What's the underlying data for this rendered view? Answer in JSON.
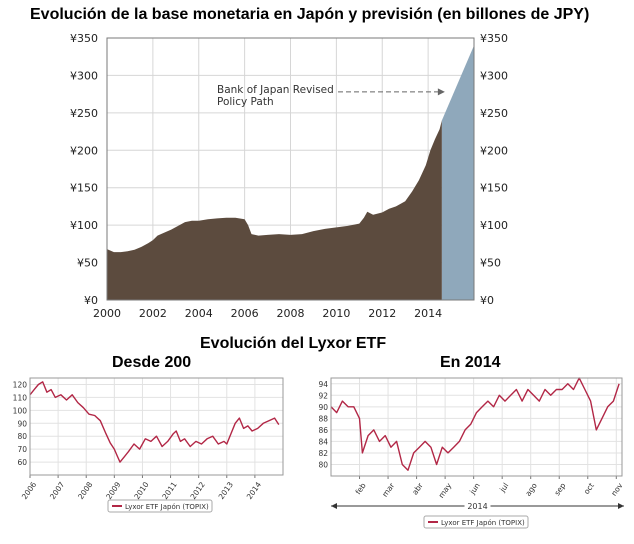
{
  "chart_data": [
    {
      "type": "area",
      "title": "Evolución de la base monetaria en Japón y previsión (en billones de JPY)",
      "xlabel": "",
      "ylabel": "",
      "xlim": [
        2000,
        2016
      ],
      "ylim": [
        0,
        350
      ],
      "grid": true,
      "x_ticks": [
        "2000",
        "2002",
        "2004",
        "2006",
        "2008",
        "2010",
        "2012",
        "2014"
      ],
      "x_tick_values": [
        2000,
        2002,
        2004,
        2006,
        2008,
        2010,
        2012,
        2014
      ],
      "y_ticks": [
        "¥0",
        "¥50",
        "¥100",
        "¥150",
        "¥200",
        "¥250",
        "¥300",
        "¥350"
      ],
      "y_tick_values": [
        0,
        50,
        100,
        150,
        200,
        250,
        300,
        350
      ],
      "annotation": {
        "lines": [
          "Bank of Japan Revised",
          "Policy Path"
        ],
        "x": 2014.6,
        "y": 278
      },
      "colors": {
        "actual": "#5c4b3e",
        "projection": "#8fa8bb",
        "grid": "#d6d6d6",
        "axis": "#7a7a7a"
      },
      "series": [
        {
          "name": "Base monetaria",
          "x": [
            2000.0,
            2000.3,
            2000.6,
            2000.9,
            2001.2,
            2001.5,
            2001.8,
            2002.0,
            2002.2,
            2002.5,
            2002.8,
            2003.1,
            2003.4,
            2003.7,
            2004.0,
            2004.4,
            2004.8,
            2005.2,
            2005.6,
            2006.0,
            2006.15,
            2006.3,
            2006.6,
            2007.0,
            2007.5,
            2008.0,
            2008.5,
            2009.0,
            2009.5,
            2010.0,
            2010.5,
            2011.0,
            2011.2,
            2011.35,
            2011.6,
            2012.0,
            2012.3,
            2012.6,
            2013.0,
            2013.3,
            2013.6,
            2013.9,
            2014.1,
            2014.3,
            2014.5,
            2014.6
          ],
          "values": [
            68,
            64,
            64,
            65,
            67,
            71,
            76,
            80,
            86,
            90,
            94,
            99,
            104,
            106,
            106,
            108,
            109,
            110,
            110,
            108,
            100,
            88,
            86,
            87,
            88,
            87,
            88,
            92,
            95,
            97,
            99,
            102,
            110,
            118,
            114,
            117,
            122,
            125,
            132,
            145,
            160,
            180,
            200,
            215,
            228,
            240
          ]
        },
        {
          "name": "Bank of Japan Revised Policy Path",
          "x": [
            2014.6,
            2016.0
          ],
          "values": [
            240,
            340
          ]
        }
      ]
    },
    {
      "type": "line",
      "header": "Evolución del Lyxor ETF",
      "title": "Desde 200",
      "xlim": [
        2006,
        2015
      ],
      "ylim": [
        50,
        125
      ],
      "grid": true,
      "x_ticks": [
        "2006",
        "2007",
        "2008",
        "2009",
        "2010",
        "2011",
        "2012",
        "2013",
        "2014"
      ],
      "x_tick_values": [
        2006,
        2007,
        2008,
        2009,
        2010,
        2011,
        2012,
        2013,
        2014
      ],
      "y_ticks": [
        "60",
        "70",
        "80",
        "90",
        "100",
        "110",
        "120"
      ],
      "y_tick_values": [
        60,
        70,
        80,
        90,
        100,
        110,
        120
      ],
      "legend": "Lyxor ETF Japón (TOPIX)",
      "legend_position": "bottom",
      "colors": {
        "line": "#b22746",
        "grid": "#e2e2e2"
      },
      "series": [
        {
          "name": "Lyxor ETF Japón (TOPIX)",
          "x": [
            2006.0,
            2006.15,
            2006.3,
            2006.45,
            2006.6,
            2006.75,
            2006.9,
            2007.1,
            2007.3,
            2007.5,
            2007.7,
            2007.9,
            2008.1,
            2008.3,
            2008.5,
            2008.7,
            2008.85,
            2009.0,
            2009.1,
            2009.2,
            2009.35,
            2009.5,
            2009.7,
            2009.9,
            2010.1,
            2010.3,
            2010.5,
            2010.7,
            2010.9,
            2011.1,
            2011.2,
            2011.35,
            2011.5,
            2011.7,
            2011.9,
            2012.1,
            2012.3,
            2012.5,
            2012.7,
            2012.9,
            2013.0,
            2013.15,
            2013.3,
            2013.45,
            2013.6,
            2013.75,
            2013.9,
            2014.1,
            2014.3,
            2014.5,
            2014.7,
            2014.85
          ],
          "values": [
            112,
            116,
            120,
            122,
            114,
            116,
            110,
            112,
            108,
            112,
            106,
            102,
            97,
            96,
            92,
            82,
            75,
            70,
            65,
            60,
            64,
            68,
            74,
            70,
            78,
            76,
            80,
            72,
            76,
            82,
            84,
            76,
            78,
            72,
            76,
            74,
            78,
            80,
            74,
            76,
            74,
            82,
            90,
            94,
            86,
            88,
            84,
            86,
            90,
            92,
            94,
            89
          ]
        }
      ]
    },
    {
      "type": "line",
      "title": "En 2014",
      "xlim": [
        0,
        10.2
      ],
      "ylim": [
        78,
        95
      ],
      "grid": true,
      "x_ticks": [
        "feb",
        "mar",
        "abr",
        "may",
        "jun",
        "jul",
        "ago",
        "sep",
        "oct",
        "nov"
      ],
      "x_tick_values": [
        1,
        2,
        3,
        4,
        5,
        6,
        7,
        8,
        9,
        10
      ],
      "y_ticks": [
        "80",
        "82",
        "84",
        "86",
        "88",
        "90",
        "92",
        "94"
      ],
      "y_tick_values": [
        80,
        82,
        84,
        86,
        88,
        90,
        92,
        94
      ],
      "period_label": "2014",
      "legend": "Lyxor ETF Japón (TOPIX)",
      "legend_position": "bottom",
      "colors": {
        "line": "#b22746",
        "grid": "#e2e2e2"
      },
      "series": [
        {
          "name": "Lyxor ETF Japón (TOPIX)",
          "x": [
            0.0,
            0.2,
            0.4,
            0.6,
            0.8,
            1.0,
            1.1,
            1.3,
            1.5,
            1.7,
            1.9,
            2.1,
            2.3,
            2.5,
            2.7,
            2.9,
            3.1,
            3.3,
            3.5,
            3.7,
            3.9,
            4.1,
            4.3,
            4.5,
            4.7,
            4.9,
            5.1,
            5.3,
            5.5,
            5.7,
            5.9,
            6.1,
            6.3,
            6.5,
            6.7,
            6.9,
            7.1,
            7.3,
            7.5,
            7.7,
            7.9,
            8.1,
            8.3,
            8.5,
            8.7,
            8.9,
            9.1,
            9.3,
            9.5,
            9.7,
            9.9,
            10.1
          ],
          "values": [
            90,
            89,
            91,
            90,
            90,
            88,
            82,
            85,
            86,
            84,
            85,
            83,
            84,
            80,
            79,
            82,
            83,
            84,
            83,
            80,
            83,
            82,
            83,
            84,
            86,
            87,
            89,
            90,
            91,
            90,
            92,
            91,
            92,
            93,
            91,
            93,
            92,
            91,
            93,
            92,
            93,
            93,
            94,
            93,
            95,
            93,
            91,
            86,
            88,
            90,
            91,
            94
          ]
        }
      ]
    }
  ]
}
